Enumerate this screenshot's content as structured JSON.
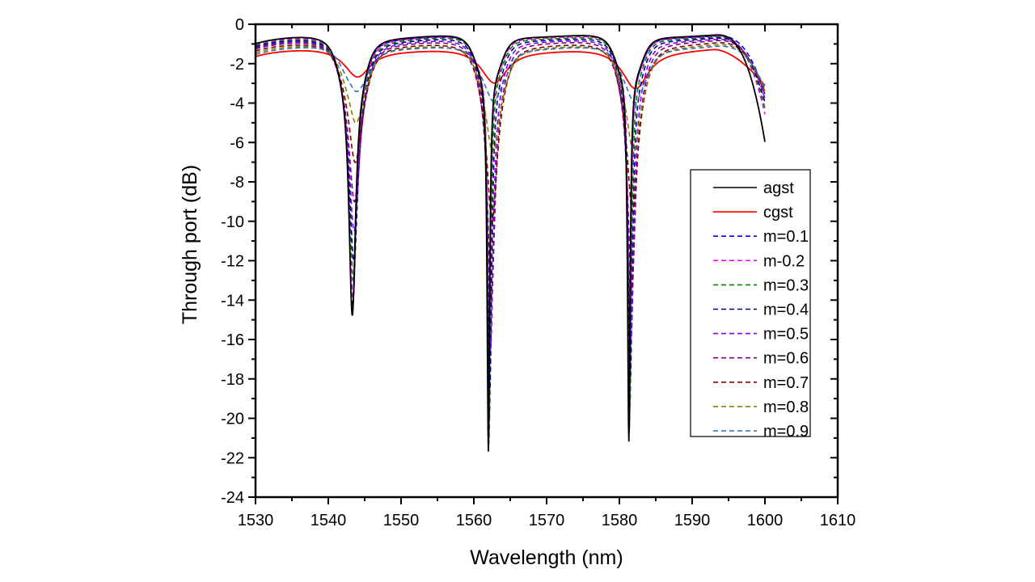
{
  "chart_data": {
    "type": "line",
    "title": "",
    "xlabel": "Wavelength (nm)",
    "ylabel": "Through port (dB)",
    "xlim": [
      1530,
      1610
    ],
    "ylim": [
      -24,
      0
    ],
    "x_ticks": [
      1530,
      1540,
      1550,
      1560,
      1570,
      1580,
      1590,
      1600,
      1610
    ],
    "y_ticks": [
      0,
      -2,
      -4,
      -6,
      -8,
      -10,
      -12,
      -14,
      -16,
      -18,
      -20,
      -22,
      -24
    ],
    "x_tick_labels": [
      "1530",
      "1540",
      "1550",
      "1560",
      "1570",
      "1580",
      "1590",
      "1600",
      "1610"
    ],
    "y_tick_labels": [
      "0",
      "-2",
      "-4",
      "-6",
      "-8",
      "-10",
      "-12",
      "-14",
      "-16",
      "-18",
      "-20",
      "-22",
      "-24"
    ],
    "grid": false,
    "legend_position": "right",
    "x_range_data": [
      1530,
      1600
    ],
    "resonances_nm": [
      1543.3,
      1562.0,
      1581.3
    ],
    "series": [
      {
        "name": "agst",
        "color": "#000000",
        "dash": "solid",
        "baseline_db": -0.55,
        "edge_end_db": -6.0,
        "dip_min_db": [
          -14.8,
          -21.7,
          -21.2
        ],
        "dip_center_nm": [
          1543.3,
          1562.0,
          1581.3
        ]
      },
      {
        "name": "cgst",
        "color": "#ff0000",
        "dash": "solid",
        "baseline_db": -1.2,
        "edge_end_db": -3.1,
        "dip_min_db": [
          -2.65,
          -2.95,
          -3.25
        ],
        "dip_center_nm": [
          1544.0,
          1562.8,
          1582.2
        ]
      },
      {
        "name": "m=0.1",
        "color": "#0000ff",
        "dash": "dashed",
        "baseline_db": -0.6,
        "edge_end_db": -3.6,
        "dip_min_db": [
          -14.5,
          -21.3,
          -20.8
        ],
        "dip_center_nm": [
          1543.35,
          1562.05,
          1581.35
        ]
      },
      {
        "name": "m-0.2",
        "color": "#ff00ff",
        "dash": "dashed",
        "baseline_db": -0.6,
        "edge_end_db": -4.6,
        "dip_min_db": [
          -14.0,
          -21.0,
          -20.5
        ],
        "dip_center_nm": [
          1543.4,
          1562.1,
          1581.4
        ]
      },
      {
        "name": "m=0.3",
        "color": "#008000",
        "dash": "dashed",
        "baseline_db": -0.65,
        "edge_end_db": -4.3,
        "dip_min_db": [
          -13.0,
          -20.0,
          -19.5
        ],
        "dip_center_nm": [
          1543.45,
          1562.15,
          1581.45
        ]
      },
      {
        "name": "m=0.4",
        "color": "#000080",
        "dash": "dashed",
        "baseline_db": -0.7,
        "edge_end_db": -4.0,
        "dip_min_db": [
          -12.0,
          -18.5,
          -18.0
        ],
        "dip_center_nm": [
          1543.5,
          1562.2,
          1581.5
        ]
      },
      {
        "name": "m=0.5",
        "color": "#8000ff",
        "dash": "dashed",
        "baseline_db": -0.75,
        "edge_end_db": -3.8,
        "dip_min_db": [
          -10.5,
          -16.5,
          -16.0
        ],
        "dip_center_nm": [
          1543.55,
          1562.3,
          1581.6
        ]
      },
      {
        "name": "m=0.6",
        "color": "#800080",
        "dash": "dashed",
        "baseline_db": -0.8,
        "edge_end_db": -3.6,
        "dip_min_db": [
          -9.0,
          -14.0,
          -13.5
        ],
        "dip_center_nm": [
          1543.6,
          1562.4,
          1581.7
        ]
      },
      {
        "name": "m=0.7",
        "color": "#800000",
        "dash": "dashed",
        "baseline_db": -0.9,
        "edge_end_db": -3.5,
        "dip_min_db": [
          -7.0,
          -10.0,
          -9.5
        ],
        "dip_center_nm": [
          1543.7,
          1562.5,
          1581.8
        ]
      },
      {
        "name": "m=0.8",
        "color": "#808000",
        "dash": "dashed",
        "baseline_db": -1.0,
        "edge_end_db": -3.4,
        "dip_min_db": [
          -5.0,
          -6.5,
          -6.5
        ],
        "dip_center_nm": [
          1543.8,
          1562.6,
          1581.95
        ]
      },
      {
        "name": "m=0.9",
        "color": "#3070b0",
        "dash": "dashed",
        "baseline_db": -1.1,
        "edge_end_db": -3.3,
        "dip_min_db": [
          -3.4,
          -3.9,
          -4.0
        ],
        "dip_center_nm": [
          1543.9,
          1562.7,
          1582.1
        ]
      }
    ]
  }
}
